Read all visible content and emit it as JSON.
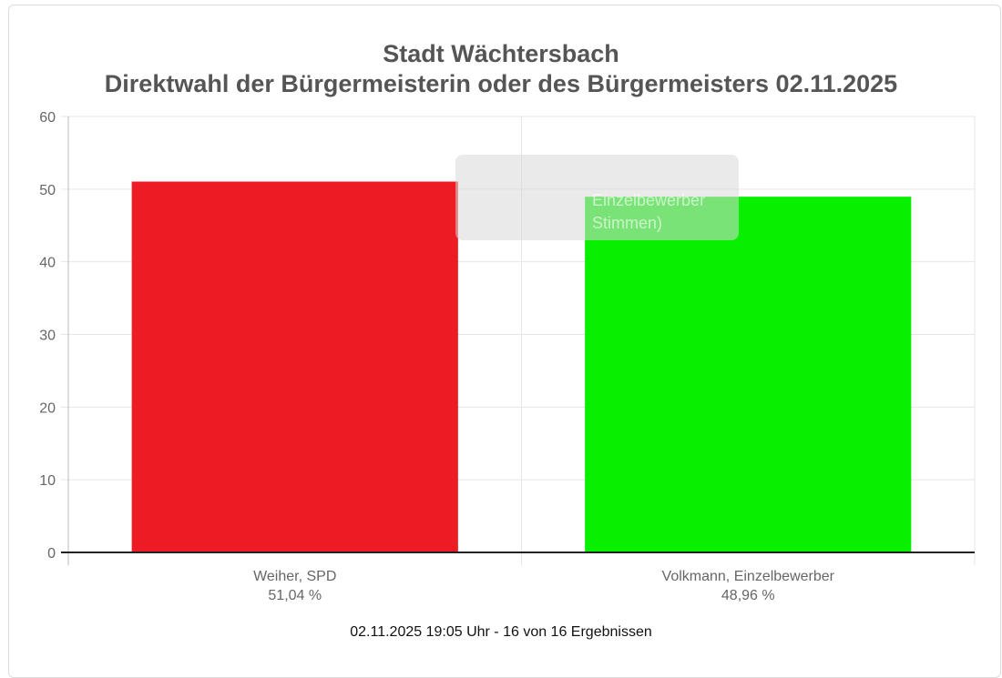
{
  "chart_data": {
    "type": "bar",
    "title": "Stadt Wächtersbach",
    "subtitle": "Direktwahl der Bürgermeisterin oder des Bürgermeisters 02.11.2025",
    "categories": [
      "Weiher, SPD",
      "Volkmann, Einzelbewerber"
    ],
    "category_values_label": [
      "51,04 %",
      "48,96 %"
    ],
    "values": [
      51.04,
      48.96
    ],
    "colors": [
      "#ed1c24",
      "#08f000"
    ],
    "ylim": [
      0,
      60
    ],
    "yticks": [
      0,
      10,
      20,
      30,
      40,
      50,
      60
    ],
    "grid": true,
    "tooltip": {
      "visible": true,
      "lines": [
        "Einzelbewerber",
        "Stimmen)"
      ]
    },
    "footer": "02.11.2025 19:05 Uhr - 16 von 16 Ergebnissen"
  }
}
